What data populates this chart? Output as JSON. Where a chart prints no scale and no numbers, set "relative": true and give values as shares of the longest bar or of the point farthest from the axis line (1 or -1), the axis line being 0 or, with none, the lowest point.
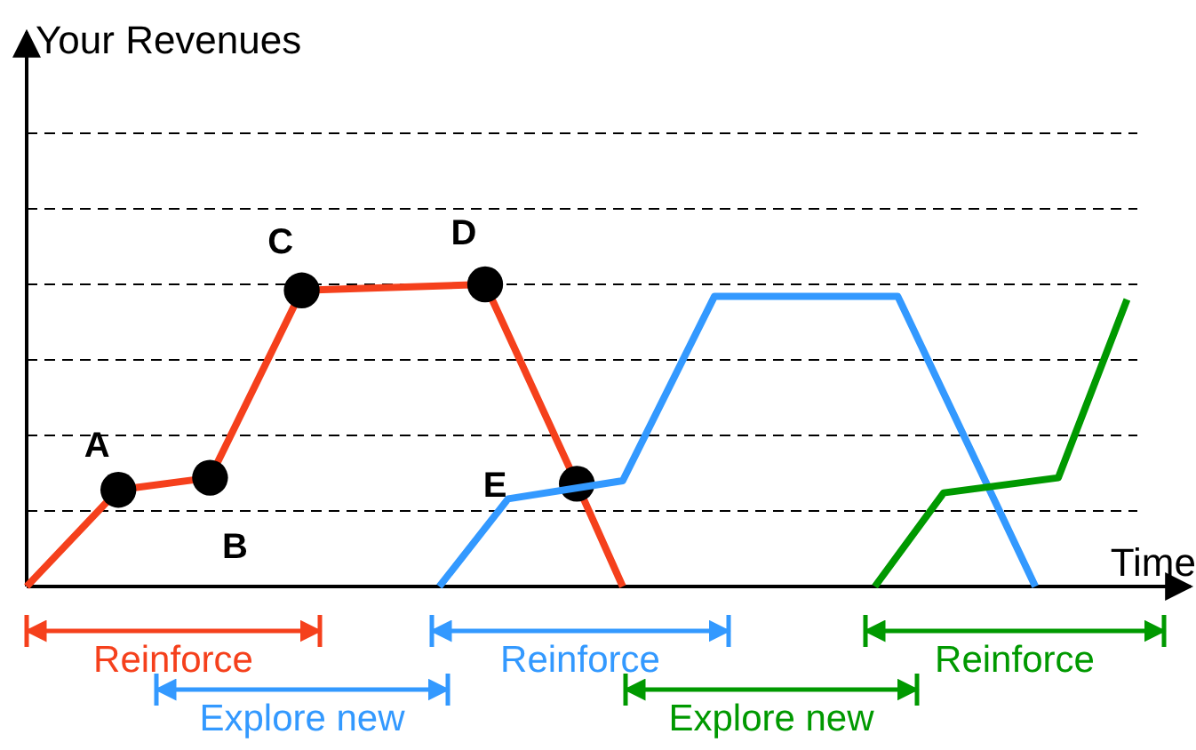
{
  "chart_data": {
    "type": "line",
    "relative": true,
    "xlabel": "Time",
    "grid": true,
    "line_style": "solid",
    "categories": [
      null,
      null,
      null,
      null,
      null,
      null,
      null,
      null,
      null,
      null,
      null,
      null,
      null,
      null,
      null,
      null,
      null,
      null,
      null,
      null,
      null,
      null,
      null,
      null,
      null,
      null,
      null,
      null,
      null,
      null,
      null,
      null,
      null,
      null,
      null,
      null,
      null,
      null,
      null,
      null,
      null,
      null,
      null,
      null,
      null,
      null,
      null,
      null,
      null,
      null,
      null
    ],
    "series": [
      {
        "color": "#f5401c",
        "marker": "circle",
        "values": [
          0,
          null,
          null,
          null,
          0.32,
          null,
          null,
          null,
          0.36,
          null,
          null,
          null,
          0.98,
          null,
          null,
          null,
          null,
          null,
          null,
          null,
          1,
          null,
          null,
          null,
          0.34,
          null,
          0,
          null,
          null,
          null,
          null,
          null,
          null,
          null,
          null,
          null,
          null,
          null,
          null,
          null,
          null,
          null,
          null,
          null,
          null,
          null,
          null,
          null,
          null,
          null,
          null
        ]
      },
      {
        "color": "#3399ff",
        "values": [
          null,
          null,
          null,
          null,
          null,
          null,
          null,
          null,
          null,
          null,
          null,
          null,
          null,
          null,
          null,
          null,
          null,
          null,
          0,
          null,
          null,
          0.29,
          null,
          null,
          null,
          null,
          0.35,
          null,
          null,
          null,
          0.96,
          null,
          null,
          null,
          null,
          null,
          null,
          null,
          0.96,
          null,
          null,
          null,
          null,
          null,
          0,
          null,
          null,
          null,
          null,
          null,
          null
        ]
      },
      {
        "color": "#009900",
        "values": [
          null,
          null,
          null,
          null,
          null,
          null,
          null,
          null,
          null,
          null,
          null,
          null,
          null,
          null,
          null,
          null,
          null,
          null,
          null,
          null,
          null,
          null,
          null,
          null,
          null,
          null,
          null,
          null,
          null,
          null,
          null,
          null,
          null,
          null,
          null,
          null,
          null,
          0,
          null,
          null,
          0.31,
          null,
          null,
          null,
          null,
          0.36,
          null,
          null,
          0.95,
          null,
          null
        ]
      }
    ],
    "annotations": [
      "A",
      "B",
      "C",
      "D",
      "E",
      "Reinforce",
      "Explore new",
      "Reinforce",
      "Explore new",
      "Reinforce",
      "Your Revenues"
    ]
  }
}
